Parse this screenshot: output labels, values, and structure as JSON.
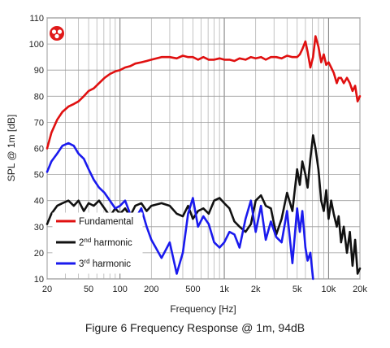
{
  "caption": "Figure 6 Frequency Response @ 1m, 94dB",
  "chart_data": {
    "type": "line",
    "title": "",
    "xlabel": "Frequency [Hz]",
    "ylabel": "SPL @ 1m [dB]",
    "x_scale": "log",
    "xlim": [
      20,
      20000
    ],
    "ylim": [
      10,
      110
    ],
    "x_ticks": [
      20,
      50,
      100,
      200,
      500,
      1000,
      2000,
      5000,
      10000,
      20000
    ],
    "x_tick_labels": [
      "20",
      "50",
      "100",
      "200",
      "500",
      "1k",
      "2k",
      "5k",
      "10k",
      "20k"
    ],
    "y_ticks": [
      10,
      20,
      30,
      40,
      50,
      60,
      70,
      80,
      90,
      100,
      110
    ],
    "grid": true,
    "legend_position": "lower-left",
    "series": [
      {
        "name": "Fundamental",
        "color": "#e01010",
        "x": [
          20,
          22,
          25,
          28,
          32,
          36,
          40,
          45,
          50,
          56,
          63,
          71,
          80,
          90,
          100,
          112,
          125,
          140,
          160,
          180,
          200,
          250,
          300,
          350,
          400,
          450,
          500,
          560,
          630,
          710,
          800,
          900,
          1000,
          1120,
          1250,
          1400,
          1600,
          1800,
          2000,
          2250,
          2500,
          2800,
          3150,
          3550,
          4000,
          4500,
          5000,
          5300,
          5600,
          6000,
          6300,
          6700,
          7100,
          7500,
          8000,
          8500,
          9000,
          9500,
          10000,
          10600,
          11200,
          12000,
          12500,
          13200,
          14000,
          15000,
          16000,
          17000,
          18000,
          19000,
          20000
        ],
        "values": [
          60,
          66,
          71,
          74,
          76,
          77,
          78,
          80,
          82,
          83,
          85,
          87,
          88.5,
          89.5,
          90,
          91,
          91.5,
          92.5,
          93,
          93.5,
          94,
          95,
          95,
          94.5,
          95.5,
          95,
          95,
          94,
          95,
          94,
          94,
          94.5,
          94,
          94,
          93.5,
          94.5,
          94,
          95,
          94.5,
          95,
          94,
          95,
          95,
          94.5,
          95.5,
          95,
          95,
          96,
          98,
          101,
          97,
          91,
          95,
          103,
          99,
          93,
          96,
          92,
          93,
          91,
          89,
          85,
          87,
          87,
          85,
          87,
          85,
          82,
          84,
          78,
          80
        ]
      },
      {
        "name": "2nd harmonic",
        "color": "#111111",
        "x": [
          20,
          22,
          25,
          28,
          32,
          36,
          40,
          45,
          50,
          56,
          63,
          71,
          80,
          90,
          100,
          112,
          125,
          140,
          160,
          180,
          200,
          250,
          300,
          350,
          400,
          450,
          500,
          560,
          630,
          710,
          800,
          900,
          1000,
          1120,
          1250,
          1400,
          1600,
          1800,
          2000,
          2250,
          2500,
          2800,
          3150,
          3550,
          4000,
          4500,
          5000,
          5300,
          5600,
          6000,
          6300,
          6700,
          7100,
          7500,
          8000,
          8500,
          9000,
          9500,
          10000,
          10600,
          11200,
          12000,
          12500,
          13200,
          14000,
          15000,
          16000,
          17000,
          18000,
          19000,
          20000
        ],
        "values": [
          31,
          35,
          38,
          39,
          40,
          38,
          40,
          36,
          39,
          38,
          40,
          37,
          34,
          37,
          35,
          37,
          34,
          38,
          39,
          36,
          38,
          39,
          38,
          35,
          34,
          38,
          33,
          36,
          37,
          35,
          40,
          41,
          39,
          37,
          32,
          30,
          28,
          31,
          40,
          42,
          38,
          37,
          27,
          33,
          43,
          36,
          52,
          46,
          55,
          50,
          45,
          56,
          65,
          60,
          52,
          40,
          36,
          44,
          33,
          40,
          35,
          30,
          34,
          24,
          30,
          20,
          28,
          15,
          25,
          12,
          14
        ]
      },
      {
        "name": "3rd harmonic",
        "color": "#1a1aee",
        "x": [
          20,
          22,
          25,
          28,
          32,
          36,
          40,
          45,
          50,
          56,
          63,
          71,
          80,
          90,
          100,
          112,
          125,
          140,
          160,
          180,
          200,
          250,
          300,
          350,
          400,
          450,
          500,
          560,
          630,
          710,
          800,
          900,
          1000,
          1120,
          1250,
          1400,
          1600,
          1800,
          2000,
          2250,
          2500,
          2800,
          3150,
          3550,
          4000,
          4500,
          5000,
          5300,
          5600,
          6000,
          6300,
          6700,
          7100
        ],
        "values": [
          51,
          55,
          58,
          61,
          62,
          61,
          58,
          56,
          52,
          48,
          45,
          43,
          40,
          37,
          38,
          40,
          35,
          33,
          37,
          30,
          25,
          18,
          24,
          12,
          20,
          35,
          41,
          30,
          34,
          31,
          24,
          22,
          24,
          28,
          27,
          22,
          33,
          40,
          28,
          38,
          25,
          32,
          26,
          24,
          36,
          16,
          37,
          28,
          36,
          22,
          17,
          20,
          10
        ]
      }
    ]
  }
}
